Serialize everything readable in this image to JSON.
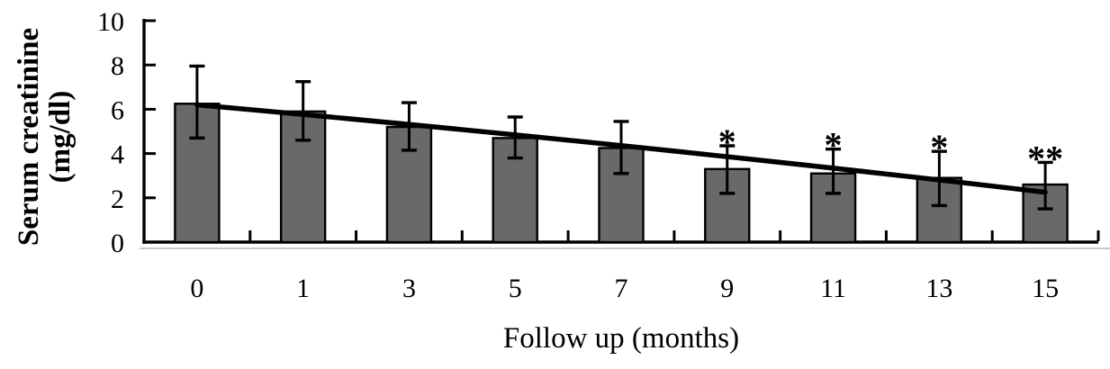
{
  "chart_data": {
    "type": "bar",
    "title": "",
    "xlabel": "Follow up (months)",
    "ylabel": "Serum creatinine (mg/dl)",
    "ylabel_lines": [
      "Serum creatinine",
      "(mg/dl)"
    ],
    "categories": [
      "0",
      "1",
      "3",
      "5",
      "7",
      "9",
      "11",
      "13",
      "15"
    ],
    "values": [
      6.25,
      5.9,
      5.2,
      4.7,
      4.25,
      3.3,
      3.1,
      2.9,
      2.6
    ],
    "error_bar_top": [
      7.95,
      7.25,
      6.3,
      5.65,
      5.45,
      4.35,
      4.2,
      4.1,
      3.6
    ],
    "error_bar_bottom": [
      4.7,
      4.6,
      4.15,
      3.8,
      3.1,
      2.2,
      2.2,
      1.65,
      1.5
    ],
    "significance": [
      "",
      "",
      "",
      "",
      "",
      "*",
      "*",
      "*",
      "**"
    ],
    "y_ticks": [
      "0",
      "2",
      "4",
      "6",
      "8",
      "10"
    ],
    "ylim": [
      0,
      10
    ],
    "grid": false,
    "legend": false,
    "trend_line": {
      "start": {
        "month": "0",
        "value": 6.2
      },
      "end": {
        "month": "15",
        "value": 2.25
      }
    },
    "colors": {
      "bar_fill": "#696969",
      "bar_border": "#000000",
      "axis": "#000000",
      "trend": "#000000",
      "baseline_shadow": "#c9c9c9"
    }
  }
}
